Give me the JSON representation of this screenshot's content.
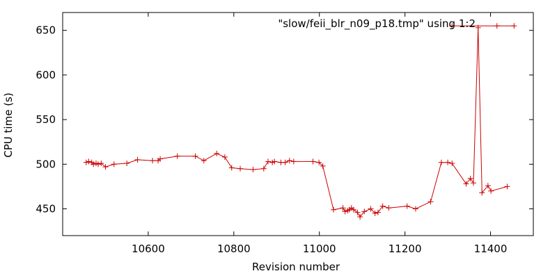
{
  "chart_data": {
    "type": "line",
    "title": "",
    "xlabel": "Revision number",
    "ylabel": "CPU time (s)",
    "xlim": [
      10400,
      11500
    ],
    "ylim": [
      420,
      670
    ],
    "xticks": [
      10600,
      10800,
      11000,
      11200,
      11400
    ],
    "yticks": [
      450,
      500,
      550,
      600,
      650
    ],
    "grid": false,
    "legend_position": "top-right",
    "colors": {
      "series": "#cc0000",
      "axis": "#000000"
    },
    "series": [
      {
        "name": "\"slow/feii_blr_n09_p18.tmp\" using 1:2",
        "marker": "plus",
        "x": [
          10455,
          10461,
          10468,
          10472,
          10478,
          10483,
          10490,
          10500,
          10520,
          10550,
          10575,
          10610,
          10623,
          10628,
          10668,
          10710,
          10730,
          10760,
          10779,
          10795,
          10815,
          10845,
          10870,
          10880,
          10890,
          10895,
          10910,
          10920,
          10930,
          10940,
          10985,
          10999,
          11008,
          11033,
          11055,
          11060,
          11066,
          11070,
          11075,
          11080,
          11089,
          11095,
          11105,
          11120,
          11130,
          11137,
          11148,
          11162,
          11205,
          11225,
          11260,
          11285,
          11300,
          11310,
          11343,
          11353,
          11360,
          11371,
          11380,
          11394,
          11401,
          11439
        ],
        "y": [
          502,
          503,
          502,
          500,
          501,
          500,
          501,
          497,
          500,
          501,
          505,
          504,
          504,
          506,
          509,
          509,
          504,
          512,
          508,
          496,
          495,
          494,
          495,
          503,
          502,
          503,
          502,
          502,
          504,
          503,
          503,
          502,
          498,
          449,
          451,
          447,
          448,
          449,
          451,
          449,
          446,
          441,
          447,
          450,
          445,
          446,
          453,
          451,
          453,
          450,
          458,
          502,
          502,
          501,
          478,
          484,
          479,
          653,
          468,
          476,
          470,
          475
        ]
      }
    ],
    "legend_sample_x": [
      11310,
      11415,
      11455
    ],
    "legend_sample_y": [
      655,
      655,
      655
    ]
  }
}
